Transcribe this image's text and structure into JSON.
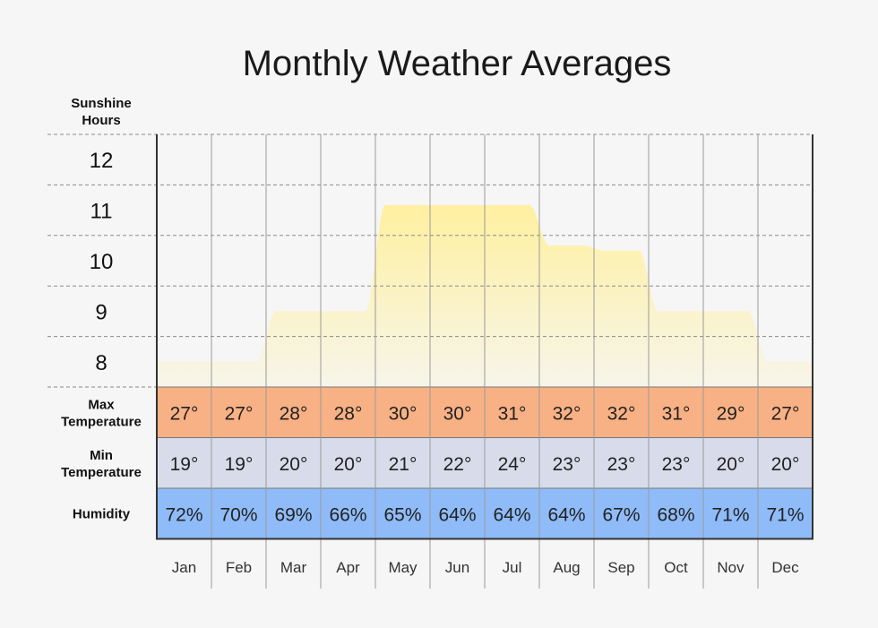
{
  "chart_data": {
    "type": "area",
    "title": "Monthly Weather Averages",
    "ylabel": "Sunshine Hours",
    "ylim": [
      7.5,
      12.5
    ],
    "y_ticks": [
      8,
      9,
      10,
      11,
      12
    ],
    "grid": true,
    "categories": [
      "Jan",
      "Feb",
      "Mar",
      "Apr",
      "May",
      "Jun",
      "Jul",
      "Aug",
      "Sep",
      "Oct",
      "Nov",
      "Dec"
    ],
    "series": [
      {
        "name": "Sunshine Hours",
        "values": [
          8.0,
          8.0,
          9.0,
          9.0,
          11.1,
          11.1,
          11.1,
          10.3,
          10.2,
          9.0,
          9.0,
          8.0
        ]
      }
    ],
    "table_rows": [
      {
        "label": "Max Temperature",
        "color": "#f8b184",
        "values": [
          "27°",
          "27°",
          "28°",
          "28°",
          "30°",
          "30°",
          "31°",
          "32°",
          "32°",
          "31°",
          "29°",
          "27°"
        ]
      },
      {
        "label": "Min Temperature",
        "color": "#d8dcea",
        "values": [
          "19°",
          "19°",
          "20°",
          "20°",
          "21°",
          "22°",
          "24°",
          "23°",
          "23°",
          "23°",
          "20°",
          "20°"
        ]
      },
      {
        "label": "Humidity",
        "color": "#8fbcf8",
        "values": [
          "72%",
          "70%",
          "69%",
          "66%",
          "65%",
          "64%",
          "64%",
          "64%",
          "67%",
          "68%",
          "71%",
          "71%"
        ]
      }
    ],
    "area_gradient": [
      "#fff0a0",
      "#f7f5ea"
    ]
  }
}
